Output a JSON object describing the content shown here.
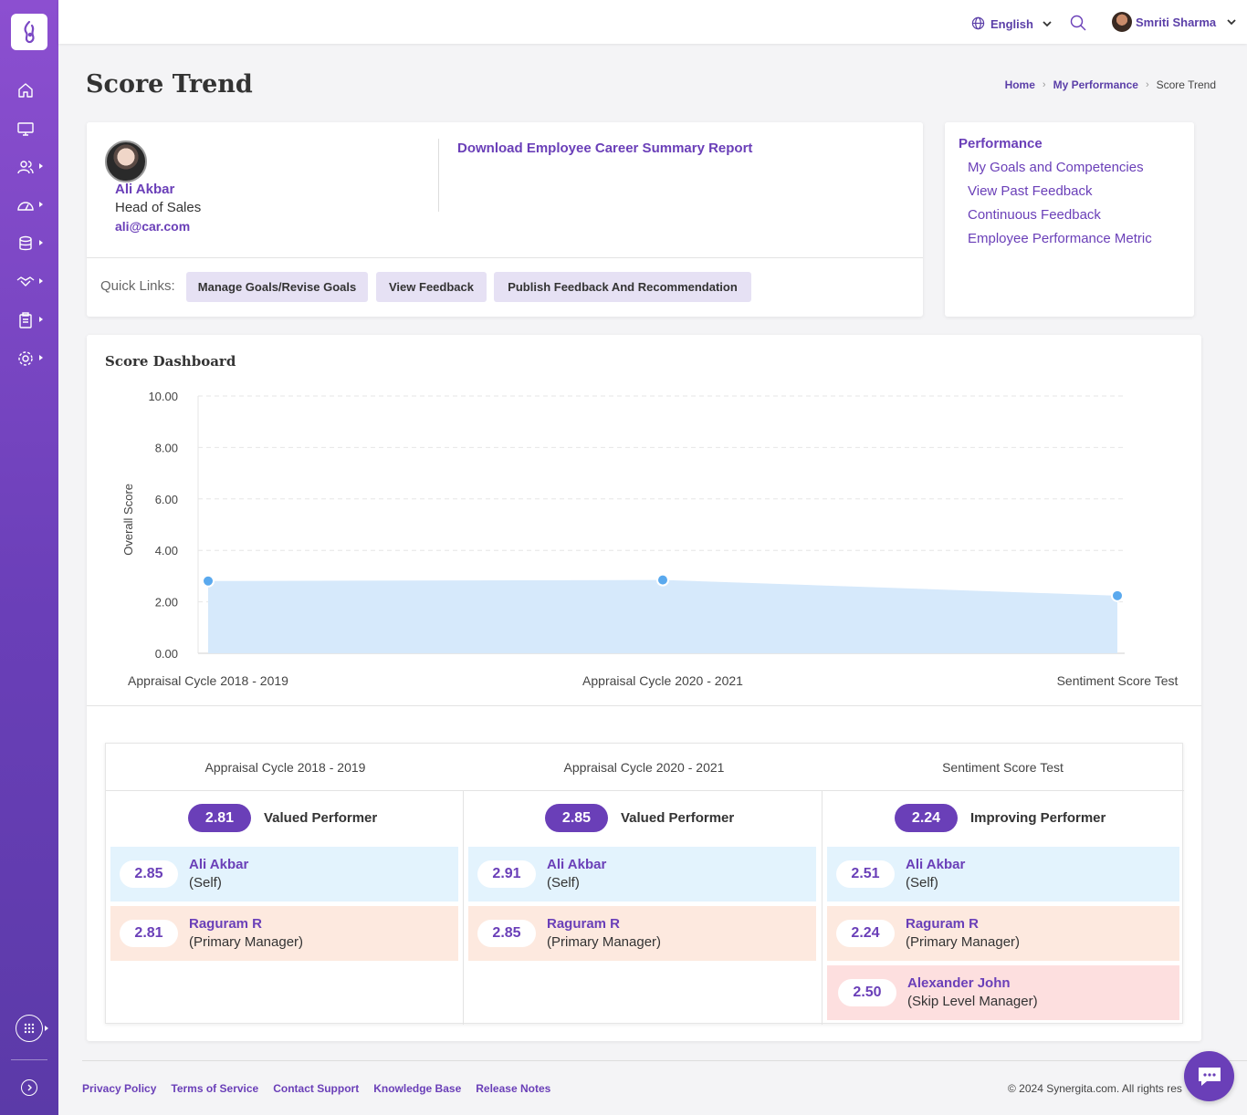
{
  "topbar": {
    "language": "English",
    "user_name": "Smriti Sharma"
  },
  "page": {
    "title": "Score Trend",
    "breadcrumb": [
      "Home",
      "My Performance",
      "Score Trend"
    ]
  },
  "employee": {
    "name": "Ali Akbar",
    "role": "Head of Sales",
    "email": "ali@car.com",
    "download_link": "Download Employee Career Summary Report",
    "quick_links_label": "Quick Links:",
    "quick_links": [
      "Manage Goals/Revise Goals",
      "View Feedback",
      "Publish Feedback And Recommendation"
    ]
  },
  "performance_panel": {
    "title": "Performance",
    "links": [
      "My Goals and Competencies",
      "View Past Feedback",
      "Continuous Feedback",
      "Employee Performance Metric"
    ]
  },
  "dashboard": {
    "title": "Score Dashboard"
  },
  "chart_data": {
    "type": "area",
    "title": "",
    "xlabel": "",
    "ylabel": "Overall Score",
    "categories": [
      "Appraisal Cycle 2018 - 2019",
      "Appraisal Cycle 2020 - 2021",
      "Sentiment Score Test"
    ],
    "values": [
      2.81,
      2.85,
      2.24
    ],
    "ylim": [
      0,
      10
    ],
    "yticks": [
      "0.00",
      "2.00",
      "4.00",
      "6.00",
      "8.00",
      "10.00"
    ],
    "grid": true,
    "colors": {
      "fill": "#d6e9fb",
      "point": "#5aa9ee"
    }
  },
  "cycles": [
    {
      "title": "Appraisal Cycle 2018 - 2019",
      "overall": "2.81",
      "label": "Valued Performer",
      "raters": [
        {
          "score": "2.85",
          "name": "Ali Akbar",
          "role": "(Self)"
        },
        {
          "score": "2.81",
          "name": "Raguram R",
          "role": "(Primary Manager)"
        }
      ]
    },
    {
      "title": "Appraisal Cycle 2020 - 2021",
      "overall": "2.85",
      "label": "Valued Performer",
      "raters": [
        {
          "score": "2.91",
          "name": "Ali Akbar",
          "role": "(Self)"
        },
        {
          "score": "2.85",
          "name": "Raguram R",
          "role": "(Primary Manager)"
        }
      ]
    },
    {
      "title": "Sentiment Score Test",
      "overall": "2.24",
      "label": "Improving Performer",
      "raters": [
        {
          "score": "2.51",
          "name": "Ali Akbar",
          "role": "(Self)"
        },
        {
          "score": "2.24",
          "name": "Raguram R",
          "role": "(Primary Manager)"
        },
        {
          "score": "2.50",
          "name": "Alexander John",
          "role": "(Skip Level Manager)"
        }
      ]
    }
  ],
  "footer": {
    "links": [
      "Privacy Policy",
      "Terms of Service",
      "Contact Support",
      "Knowledge Base",
      "Release Notes"
    ],
    "copyright": "© 2024 Synergita.com. All rights res"
  },
  "icons": {
    "sidebar": [
      "home-icon",
      "monitor-icon",
      "users-icon",
      "dashboard-gauge-icon",
      "database-icon",
      "handshake-icon",
      "clipboard-icon",
      "settings-icon"
    ],
    "accent": "#6a3fb8"
  }
}
